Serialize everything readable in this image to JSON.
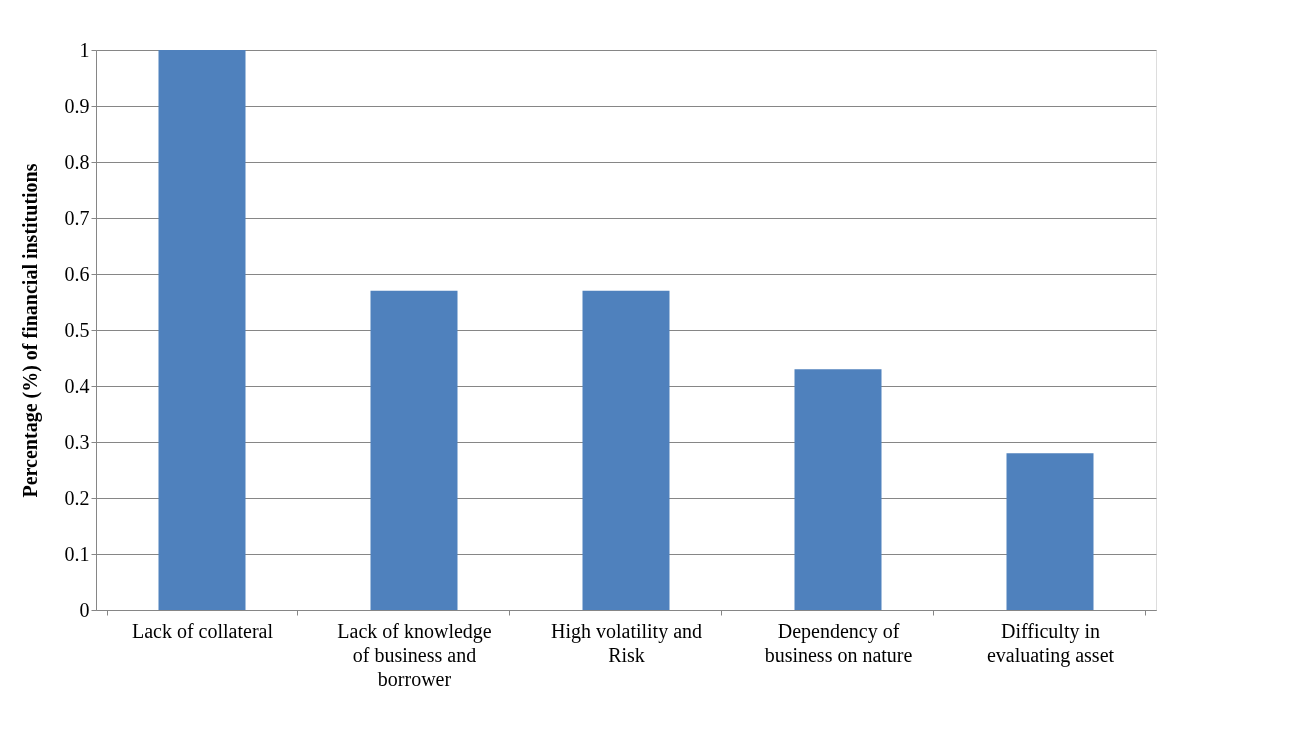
{
  "chart_data": {
    "type": "bar",
    "ylabel": "Percentage (%) of financial institutions",
    "categories": [
      "Lack of collateral",
      "Lack of knowledge of business and borrower",
      "High volatility and Risk",
      "Dependency of business on nature",
      "Difficulty in evaluating asset"
    ],
    "values": [
      1,
      0.57,
      0.57,
      0.43,
      0.28
    ],
    "color": "#4f81bd",
    "ylim": [
      0,
      1
    ],
    "yticks": [
      0,
      0.1,
      0.2,
      0.3,
      0.4,
      0.5,
      0.6,
      0.7,
      0.8,
      0.9,
      1
    ],
    "grid": "y"
  }
}
